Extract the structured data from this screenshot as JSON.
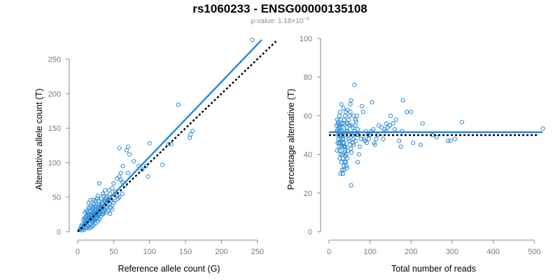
{
  "title": "rs1060233 - ENSG00000135108",
  "subtitle": {
    "label": "p-value: 1.18×10",
    "exponent": "−4"
  },
  "colors": {
    "points": "#2a8ad4",
    "fit_line": "#1e88e5",
    "reference_line": "#000000",
    "axis": "#8a8a8a"
  },
  "chart_data": [
    {
      "type": "scatter",
      "xlabel": "Reference allele count (G)",
      "ylabel": "Alternative allele count (T)",
      "xlim": [
        0,
        260
      ],
      "ylim": [
        0,
        280
      ],
      "x_ticks": [
        0,
        50,
        100,
        150,
        200,
        250
      ],
      "y_ticks": [
        0,
        50,
        100,
        150,
        200,
        250
      ],
      "grid": false,
      "fit_line": {
        "from": [
          0,
          0
        ],
        "to": [
          256,
          278
        ],
        "style": "solid"
      },
      "reference_line": {
        "from": [
          0,
          0
        ],
        "to": [
          278,
          278
        ],
        "style": "dotted"
      },
      "points": [
        [
          243,
          278
        ],
        [
          140,
          184
        ],
        [
          160,
          146
        ],
        [
          157,
          141
        ],
        [
          156,
          136
        ],
        [
          130,
          127
        ],
        [
          126,
          127
        ],
        [
          100,
          128
        ],
        [
          70,
          123
        ],
        [
          68,
          118
        ],
        [
          58,
          121
        ],
        [
          72,
          112
        ],
        [
          78,
          102
        ],
        [
          85,
          95
        ],
        [
          95,
          95
        ],
        [
          90,
          90
        ],
        [
          98,
          80
        ],
        [
          118,
          97
        ],
        [
          63,
          95
        ],
        [
          60,
          85
        ],
        [
          58,
          80
        ],
        [
          55,
          77
        ],
        [
          50,
          70
        ],
        [
          60,
          75
        ],
        [
          62,
          72
        ],
        [
          66,
          68
        ],
        [
          70,
          85
        ],
        [
          48,
          63
        ],
        [
          52,
          58
        ],
        [
          45,
          55
        ],
        [
          40,
          50
        ],
        [
          42,
          46
        ],
        [
          55,
          52
        ],
        [
          58,
          50
        ],
        [
          46,
          45
        ],
        [
          38,
          44
        ],
        [
          35,
          42
        ],
        [
          30,
          40
        ],
        [
          32,
          38
        ],
        [
          28,
          35
        ],
        [
          25,
          33
        ],
        [
          30,
          30
        ],
        [
          22,
          28
        ],
        [
          24,
          25
        ],
        [
          20,
          27
        ],
        [
          18,
          24
        ],
        [
          18,
          30
        ],
        [
          20,
          35
        ],
        [
          25,
          38
        ],
        [
          35,
          55
        ],
        [
          38,
          60
        ],
        [
          30,
          70
        ],
        [
          27,
          48
        ],
        [
          22,
          46
        ],
        [
          18,
          46
        ],
        [
          15,
          42
        ],
        [
          15,
          35
        ],
        [
          12,
          30
        ],
        [
          10,
          28
        ],
        [
          15,
          25
        ],
        [
          12,
          22
        ],
        [
          14,
          18
        ],
        [
          16,
          15
        ],
        [
          10,
          20
        ],
        [
          8,
          18
        ],
        [
          9,
          15
        ],
        [
          11,
          12
        ],
        [
          13,
          10
        ],
        [
          15,
          8
        ],
        [
          17,
          12
        ],
        [
          20,
          15
        ],
        [
          22,
          18
        ],
        [
          25,
          20
        ],
        [
          28,
          22
        ],
        [
          30,
          25
        ],
        [
          32,
          28
        ],
        [
          35,
          30
        ],
        [
          38,
          32
        ],
        [
          40,
          35
        ],
        [
          42,
          38
        ],
        [
          44,
          40
        ],
        [
          46,
          35
        ],
        [
          48,
          38
        ],
        [
          50,
          42
        ],
        [
          40,
          28
        ],
        [
          35,
          25
        ],
        [
          28,
          15
        ],
        [
          30,
          18
        ],
        [
          25,
          12
        ],
        [
          22,
          10
        ],
        [
          20,
          8
        ],
        [
          18,
          6
        ],
        [
          16,
          5
        ],
        [
          12,
          5
        ],
        [
          10,
          6
        ],
        [
          8,
          8
        ],
        [
          6,
          10
        ],
        [
          5,
          8
        ],
        [
          7,
          5
        ],
        [
          9,
          3
        ],
        [
          4,
          4
        ],
        [
          6,
          2
        ],
        [
          3,
          3
        ],
        [
          20,
          20
        ],
        [
          23,
          22
        ],
        [
          27,
          25
        ],
        [
          33,
          35
        ],
        [
          36,
          28
        ],
        [
          42,
          30
        ],
        [
          45,
          26
        ],
        [
          48,
          32
        ],
        [
          52,
          45
        ],
        [
          56,
          48
        ],
        [
          62,
          55
        ],
        [
          25,
          45
        ],
        [
          22,
          40
        ],
        [
          19,
          38
        ],
        [
          17,
          34
        ],
        [
          14,
          28
        ],
        [
          13,
          24
        ],
        [
          11,
          20
        ],
        [
          24,
          30
        ],
        [
          26,
          28
        ],
        [
          29,
          32
        ],
        [
          31,
          36
        ],
        [
          34,
          40
        ],
        [
          37,
          46
        ],
        [
          39,
          48
        ],
        [
          41,
          52
        ],
        [
          44,
          60
        ],
        [
          18,
          20
        ],
        [
          19,
          22
        ],
        [
          21,
          24
        ],
        [
          23,
          26
        ],
        [
          16,
          20
        ],
        [
          14,
          16
        ],
        [
          12,
          14
        ],
        [
          10,
          12
        ],
        [
          15,
          22
        ],
        [
          17,
          18
        ],
        [
          19,
          16
        ],
        [
          21,
          14
        ],
        [
          23,
          16
        ],
        [
          25,
          18
        ],
        [
          27,
          20
        ],
        [
          29,
          24
        ],
        [
          32,
          22
        ],
        [
          34,
          26
        ],
        [
          36,
          34
        ],
        [
          21,
          32
        ],
        [
          26,
          36
        ],
        [
          29,
          44
        ],
        [
          33,
          48
        ],
        [
          28,
          52
        ],
        [
          36,
          52
        ],
        [
          44,
          46
        ]
      ]
    },
    {
      "type": "scatter",
      "xlabel": "Total number of reads",
      "ylabel": "Percentage alternative (T)",
      "xlim": [
        0,
        520
      ],
      "ylim": [
        0,
        100
      ],
      "x_ticks": [
        0,
        100,
        200,
        300,
        400,
        500
      ],
      "y_ticks": [
        0,
        20,
        40,
        60,
        80,
        100
      ],
      "grid": false,
      "fit_line": {
        "y": 51.5,
        "style": "solid"
      },
      "reference_line": {
        "y": 50,
        "style": "dotted"
      },
      "points": [
        [
          521,
          53.4
        ],
        [
          324,
          56.7
        ],
        [
          307,
          48
        ],
        [
          296,
          47.2
        ],
        [
          290,
          47
        ],
        [
          262,
          49
        ],
        [
          253,
          50
        ],
        [
          228,
          56
        ],
        [
          223,
          45
        ],
        [
          205,
          46
        ],
        [
          200,
          62
        ],
        [
          190,
          62
        ],
        [
          180,
          68
        ],
        [
          178,
          52
        ],
        [
          171,
          47
        ],
        [
          175,
          44
        ],
        [
          163,
          58
        ],
        [
          160,
          53
        ],
        [
          156,
          56
        ],
        [
          150,
          60
        ],
        [
          148,
          55
        ],
        [
          143,
          54
        ],
        [
          140,
          56
        ],
        [
          138,
          52
        ],
        [
          135,
          53
        ],
        [
          132,
          48
        ],
        [
          128,
          54
        ],
        [
          121,
          55
        ],
        [
          118,
          50
        ],
        [
          115,
          48
        ],
        [
          112,
          45
        ],
        [
          110,
          46
        ],
        [
          108,
          53
        ],
        [
          105,
          67
        ],
        [
          103,
          52
        ],
        [
          100,
          50
        ],
        [
          97,
          48
        ],
        [
          95,
          50
        ],
        [
          92,
          46
        ],
        [
          90,
          52
        ],
        [
          88,
          47
        ],
        [
          85,
          48
        ],
        [
          83,
          62
        ],
        [
          80,
          65
        ],
        [
          78,
          48
        ],
        [
          75,
          44
        ],
        [
          73,
          40
        ],
        [
          70,
          36
        ],
        [
          68,
          50
        ],
        [
          65,
          58
        ],
        [
          62,
          76
        ],
        [
          60,
          60
        ],
        [
          58,
          54
        ],
        [
          56,
          55
        ],
        [
          54,
          68
        ],
        [
          52,
          66
        ],
        [
          50,
          60
        ],
        [
          48,
          48
        ],
        [
          46,
          42
        ],
        [
          44,
          38
        ],
        [
          42,
          40
        ],
        [
          40,
          44
        ],
        [
          38,
          36
        ],
        [
          36,
          32
        ],
        [
          34,
          38
        ],
        [
          32,
          40
        ],
        [
          30,
          44
        ],
        [
          28,
          48
        ],
        [
          26,
          52
        ],
        [
          24,
          54
        ],
        [
          22,
          56
        ],
        [
          20,
          58
        ],
        [
          22,
          50
        ],
        [
          24,
          46
        ],
        [
          26,
          42
        ],
        [
          28,
          40
        ],
        [
          30,
          36
        ],
        [
          32,
          32
        ],
        [
          34,
          30
        ],
        [
          36,
          34
        ],
        [
          38,
          44
        ],
        [
          40,
          50
        ],
        [
          42,
          52
        ],
        [
          44,
          54
        ],
        [
          46,
          56
        ],
        [
          48,
          58
        ],
        [
          50,
          55
        ],
        [
          52,
          62
        ],
        [
          54,
          24
        ],
        [
          56,
          50
        ],
        [
          58,
          46
        ],
        [
          60,
          48
        ],
        [
          62,
          52
        ],
        [
          64,
          55
        ],
        [
          66,
          57
        ],
        [
          68,
          60
        ],
        [
          70,
          53
        ],
        [
          72,
          50
        ],
        [
          20,
          42
        ],
        [
          21,
          46
        ],
        [
          23,
          48
        ],
        [
          25,
          44
        ],
        [
          27,
          46
        ],
        [
          29,
          50
        ],
        [
          31,
          52
        ],
        [
          33,
          54
        ],
        [
          35,
          56
        ],
        [
          37,
          58
        ],
        [
          39,
          60
        ],
        [
          41,
          62
        ],
        [
          43,
          56
        ],
        [
          45,
          52
        ],
        [
          47,
          50
        ],
        [
          49,
          47
        ],
        [
          51,
          45
        ],
        [
          53,
          43
        ],
        [
          55,
          41
        ],
        [
          25,
          60
        ],
        [
          27,
          62
        ],
        [
          29,
          58
        ],
        [
          31,
          56
        ],
        [
          33,
          50
        ],
        [
          35,
          48
        ],
        [
          37,
          46
        ],
        [
          39,
          42
        ],
        [
          41,
          36
        ],
        [
          30,
          66
        ],
        [
          35,
          64
        ],
        [
          45,
          63
        ],
        [
          55,
          51
        ],
        [
          60,
          45
        ],
        [
          65,
          47
        ],
        [
          18,
          55
        ],
        [
          19,
          52
        ],
        [
          21,
          53
        ],
        [
          23,
          57
        ],
        [
          26,
          55
        ],
        [
          28,
          54
        ],
        [
          32,
          48
        ],
        [
          34,
          46
        ],
        [
          36,
          44
        ],
        [
          38,
          41
        ],
        [
          40,
          39
        ],
        [
          42,
          34
        ],
        [
          44,
          33
        ],
        [
          26,
          38
        ],
        [
          28,
          30
        ]
      ]
    }
  ]
}
